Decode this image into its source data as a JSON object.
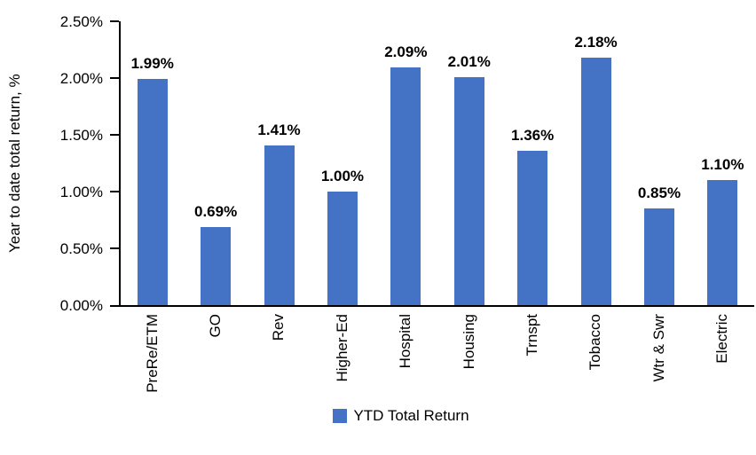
{
  "chart_data": {
    "type": "bar",
    "title": "",
    "ylabel": "Year to date total return, %",
    "xlabel": "",
    "categories": [
      "PreRe/ETM",
      "GO",
      "Rev",
      "Higher-Ed",
      "Hospital",
      "Housing",
      "Trnspt",
      "Tobacco",
      "Wtr & Swr",
      "Electric"
    ],
    "values": [
      1.99,
      0.69,
      1.41,
      1.0,
      2.09,
      2.01,
      1.36,
      2.18,
      0.85,
      1.1
    ],
    "data_labels": [
      "1.99%",
      "0.69%",
      "1.41%",
      "1.00%",
      "2.09%",
      "2.01%",
      "1.36%",
      "2.18%",
      "0.85%",
      "1.10%"
    ],
    "ylim": [
      0,
      2.5
    ],
    "ytick_step": 0.5,
    "ytick_labels": [
      "0.00%",
      "0.50%",
      "1.00%",
      "1.50%",
      "2.00%",
      "2.50%"
    ],
    "grid": false,
    "bar_color": "#4472C4",
    "axis_color": "#000000",
    "text_color": "#000000",
    "background_color": "#FFFFFF",
    "legend": {
      "position": "bottom",
      "entries": [
        {
          "label": "YTD Total Return",
          "color": "#4472C4"
        }
      ]
    }
  }
}
